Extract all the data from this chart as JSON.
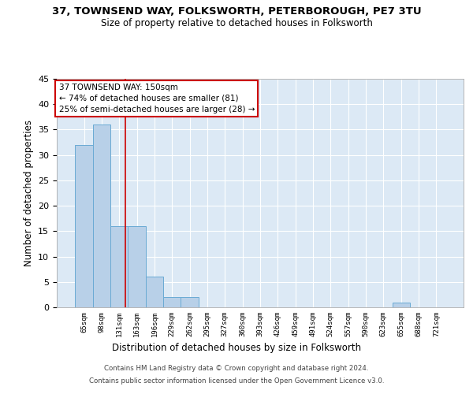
{
  "title1": "37, TOWNSEND WAY, FOLKSWORTH, PETERBOROUGH, PE7 3TU",
  "title2": "Size of property relative to detached houses in Folksworth",
  "xlabel": "Distribution of detached houses by size in Folksworth",
  "ylabel": "Number of detached properties",
  "bin_labels": [
    "65sqm",
    "98sqm",
    "131sqm",
    "163sqm",
    "196sqm",
    "229sqm",
    "262sqm",
    "295sqm",
    "327sqm",
    "360sqm",
    "393sqm",
    "426sqm",
    "459sqm",
    "491sqm",
    "524sqm",
    "557sqm",
    "590sqm",
    "623sqm",
    "655sqm",
    "688sqm",
    "721sqm"
  ],
  "bar_heights": [
    32,
    36,
    16,
    16,
    6,
    2,
    2,
    0,
    0,
    0,
    0,
    0,
    0,
    0,
    0,
    0,
    0,
    0,
    1,
    0,
    0
  ],
  "bar_color": "#b8d0e8",
  "bar_edge_color": "#6aaad4",
  "background_color": "#dce9f5",
  "grid_color": "#ffffff",
  "red_line_x": 2.33,
  "annotation_line1": "37 TOWNSEND WAY: 150sqm",
  "annotation_line2": "← 74% of detached houses are smaller (81)",
  "annotation_line3": "25% of semi-detached houses are larger (28) →",
  "annotation_box_color": "#ffffff",
  "annotation_box_edge_color": "#cc0000",
  "ylim": [
    0,
    45
  ],
  "yticks": [
    0,
    5,
    10,
    15,
    20,
    25,
    30,
    35,
    40,
    45
  ],
  "footer1": "Contains HM Land Registry data © Crown copyright and database right 2024.",
  "footer2": "Contains public sector information licensed under the Open Government Licence v3.0.",
  "fig_bg": "#ffffff"
}
